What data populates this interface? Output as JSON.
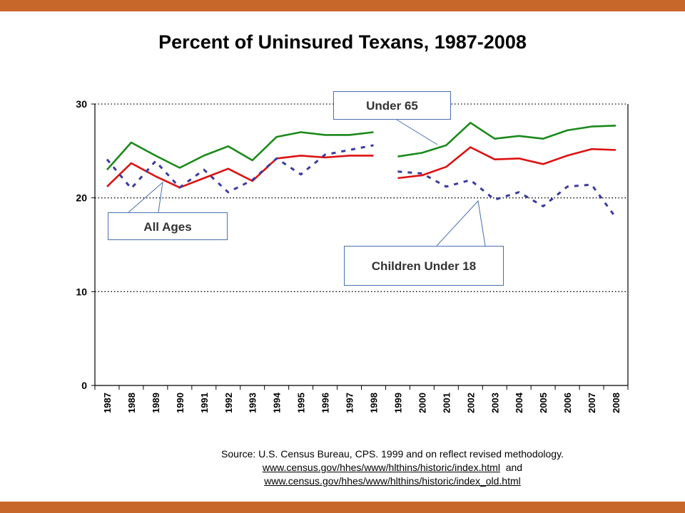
{
  "colors": {
    "border_bar": "#c8672a",
    "under65": "#1a8a1a",
    "all_ages": "#dd1111",
    "children": "#3a3aa0",
    "callout_border": "#4a6fb0"
  },
  "callouts": {
    "under65": "Under 65",
    "all_ages": "All Ages",
    "children": "Children Under 18"
  },
  "source": {
    "text": "Source: U.S. Census Bureau, CPS. 1999 and on reflect revised methodology.",
    "link1": "www.census.gov/hhes/www/hlthins/historic/index.html",
    "and": "and",
    "link2": "www.census.gov/hhes/www/hlthins/historic/index_old.html"
  },
  "chart_data": {
    "type": "line",
    "title": "Percent of Uninsured Texans, 1987-2008",
    "xlabel": "",
    "ylabel": "",
    "categories": [
      "1987",
      "1988",
      "1989",
      "1990",
      "1991",
      "1992",
      "1993",
      "1994",
      "1995",
      "1996",
      "1997",
      "1998",
      "1999",
      "2000",
      "2001",
      "2002",
      "2003",
      "2004",
      "2005",
      "2006",
      "2007",
      "2008"
    ],
    "ylim": [
      0,
      30
    ],
    "yticks": [
      0,
      10,
      20,
      30
    ],
    "grid": "dotted horizontal at 10, 20, 30",
    "break_after": "1998",
    "series": [
      {
        "name": "Under 65",
        "style": "solid",
        "values": [
          23.0,
          25.9,
          24.5,
          23.2,
          24.5,
          25.5,
          24.0,
          26.5,
          27.0,
          26.7,
          26.7,
          27.0,
          24.4,
          24.8,
          25.6,
          28.0,
          26.3,
          26.6,
          26.3,
          27.2,
          27.6,
          27.7
        ]
      },
      {
        "name": "All Ages",
        "style": "solid",
        "values": [
          21.2,
          23.7,
          22.3,
          21.1,
          22.1,
          23.1,
          21.8,
          24.2,
          24.5,
          24.3,
          24.5,
          24.5,
          22.1,
          22.4,
          23.3,
          25.4,
          24.1,
          24.2,
          23.6,
          24.5,
          25.2,
          25.1
        ]
      },
      {
        "name": "Children Under 18",
        "style": "dashed",
        "values": [
          24.1,
          21.0,
          23.9,
          21.1,
          23.0,
          20.6,
          21.9,
          24.2,
          22.5,
          24.6,
          25.1,
          25.6,
          22.8,
          22.6,
          21.2,
          21.9,
          19.8,
          20.6,
          19.1,
          21.2,
          21.4,
          17.9
        ]
      }
    ]
  }
}
